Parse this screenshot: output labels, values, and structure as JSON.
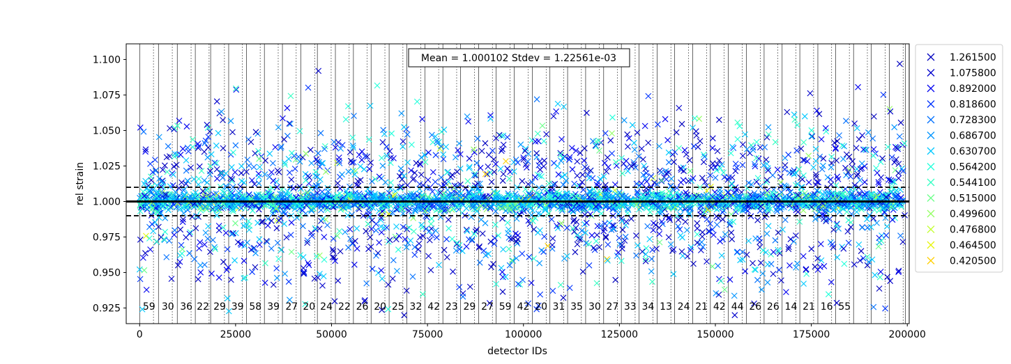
{
  "chart_data": {
    "type": "scatter",
    "xlabel": "detector IDs",
    "ylabel": "rel strain",
    "xlim": [
      -3500,
      200500
    ],
    "ylim": [
      0.914,
      1.111
    ],
    "x_ticks": [
      0,
      25000,
      50000,
      75000,
      100000,
      125000,
      150000,
      175000,
      200000
    ],
    "x_tick_labels": [
      "0",
      "25000",
      "50000",
      "75000",
      "100000",
      "125000",
      "150000",
      "175000",
      "200000"
    ],
    "y_ticks": [
      0.925,
      0.95,
      0.975,
      1.0,
      1.025,
      1.05,
      1.075,
      1.1
    ],
    "y_tick_labels": [
      "0.925",
      "0.950",
      "0.975",
      "1.000",
      "1.025",
      "1.050",
      "1.075",
      "1.100"
    ],
    "mean": 1.0,
    "band": [
      0.99,
      1.01
    ],
    "annotation": "Mean = 1.000102 Stdev = 1.22561e-03",
    "marker": "x",
    "legend_position": "outside-right",
    "series": [
      {
        "name": "1.261500",
        "color": "#0000bf"
      },
      {
        "name": "1.075800",
        "color": "#0000cc"
      },
      {
        "name": "0.892000",
        "color": "#0000f0"
      },
      {
        "name": "0.818600",
        "color": "#0033ff"
      },
      {
        "name": "0.728300",
        "color": "#0070ff"
      },
      {
        "name": "0.686700",
        "color": "#0094ff"
      },
      {
        "name": "0.630700",
        "color": "#00c8ff"
      },
      {
        "name": "0.564200",
        "color": "#23ffdb"
      },
      {
        "name": "0.544100",
        "color": "#33ffc3"
      },
      {
        "name": "0.515000",
        "color": "#6cff8a"
      },
      {
        "name": "0.499600",
        "color": "#93ff63"
      },
      {
        "name": "0.476800",
        "color": "#c3ff33"
      },
      {
        "name": "0.464500",
        "color": "#e6f50a"
      },
      {
        "name": "0.420500",
        "color": "#ffcf00"
      }
    ],
    "bank_boundaries": [
      0,
      4900,
      9800,
      14500,
      18500,
      23200,
      27800,
      32500,
      37200,
      42000,
      46300,
      51000,
      55700,
      60300,
      65000,
      69600,
      74300,
      79000,
      83600,
      88300,
      92900,
      97600,
      102300,
      106900,
      111500,
      116200,
      120900,
      125500,
      130100,
      134800,
      139400,
      144100,
      148700,
      153400,
      158100,
      162700,
      167400,
      172000,
      176700,
      181300,
      186000,
      190600,
      195300,
      199500
    ],
    "bank_labels": [
      "59",
      "30",
      "36",
      "22",
      "29",
      "39",
      "58",
      "39",
      "27",
      "20",
      "24",
      "22",
      "26",
      "20",
      "25",
      "32",
      "42",
      "23",
      "29",
      "27",
      "59",
      "42",
      "20",
      "31",
      "35",
      "30",
      "27",
      "33",
      "34",
      "13",
      "24",
      "21",
      "42",
      "44",
      "26",
      "26",
      "14",
      "21",
      "16",
      "55"
    ]
  }
}
